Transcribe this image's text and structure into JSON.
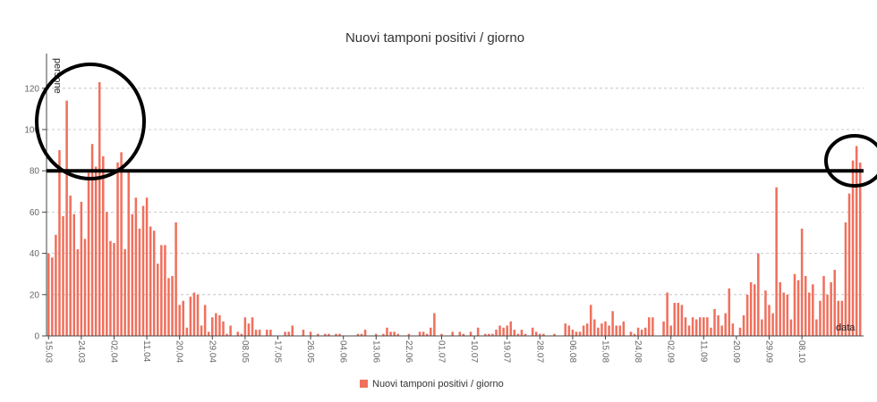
{
  "chart_data": {
    "type": "bar",
    "title": "Nuovi tamponi positivi / giorno",
    "xlabel": "data",
    "ylabel": "persone",
    "ylim": [
      0,
      135
    ],
    "yticks": [
      0,
      20,
      40,
      60,
      80,
      100,
      120
    ],
    "grid": true,
    "legend_position": "bottom",
    "bar_color": "#f0705d",
    "x_tick_labels": [
      "15.03",
      "24.03",
      "02.04",
      "11.04",
      "20.04",
      "29.04",
      "08.05",
      "17.05",
      "26.05",
      "04.06",
      "13.06",
      "22.06",
      "01.07",
      "10.07",
      "19.07",
      "28.07",
      "06.08",
      "15.08",
      "24.08",
      "02.09",
      "11.09",
      "20.09",
      "29.09",
      "08.10"
    ],
    "series": [
      {
        "name": "Nuovi tamponi positivi / giorno",
        "values": [
          40,
          38,
          49,
          90,
          58,
          114,
          68,
          59,
          42,
          65,
          47,
          79,
          93,
          82,
          123,
          87,
          60,
          46,
          45,
          84,
          89,
          42,
          80,
          59,
          67,
          52,
          63,
          67,
          53,
          51,
          35,
          44,
          44,
          28,
          29,
          55,
          15,
          17,
          4,
          19,
          21,
          20,
          5,
          15,
          2,
          9,
          11,
          10,
          7,
          1,
          5,
          0,
          2,
          1,
          9,
          6,
          9,
          3,
          3,
          0,
          3,
          3,
          0,
          0,
          0,
          2,
          2,
          5,
          0,
          0,
          3,
          0,
          2,
          0,
          1,
          0,
          1,
          1,
          0,
          1,
          1,
          0,
          0,
          0,
          0,
          1,
          1,
          3,
          0,
          0,
          1,
          0,
          1,
          4,
          2,
          2,
          1,
          0,
          0,
          1,
          0,
          0,
          2,
          2,
          1,
          4,
          11,
          0,
          1,
          0,
          0,
          2,
          0,
          2,
          1,
          0,
          2,
          0,
          4,
          0,
          1,
          1,
          1,
          3,
          5,
          4,
          5,
          7,
          3,
          1,
          3,
          1,
          0,
          4,
          2,
          1,
          1,
          0,
          0,
          1,
          0,
          0,
          6,
          5,
          3,
          2,
          2,
          5,
          6,
          15,
          8,
          4,
          6,
          7,
          5,
          12,
          5,
          5,
          7,
          0,
          2,
          1,
          4,
          3,
          4,
          9,
          9,
          0,
          0,
          7,
          21,
          5,
          16,
          16,
          15,
          9,
          5,
          9,
          8,
          9,
          9,
          9,
          4,
          13,
          10,
          5,
          11,
          23,
          6,
          0,
          4,
          10,
          20,
          26,
          25,
          40,
          8,
          22,
          15,
          11,
          72,
          26,
          21,
          20,
          8,
          30,
          27,
          52,
          29,
          21,
          25,
          8,
          17,
          29,
          20,
          26,
          32,
          17,
          17,
          55,
          69,
          85,
          92,
          84
        ]
      }
    ],
    "annotations": [
      {
        "type": "horizontal-line",
        "y": 80
      },
      {
        "type": "circle"
      },
      {
        "type": "circle"
      }
    ]
  }
}
